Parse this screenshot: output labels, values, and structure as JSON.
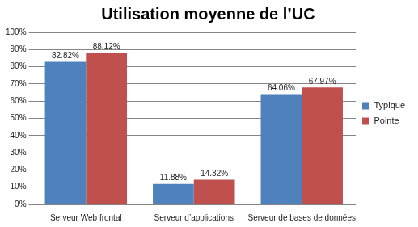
{
  "chart_data": {
    "type": "bar",
    "title": "Utilisation moyenne de l’UC",
    "categories": [
      "Serveur Web frontal",
      "Serveur d’applications",
      "Serveur de bases de données"
    ],
    "series": [
      {
        "name": "Typique",
        "color": "#4f81bd",
        "values": [
          82.82,
          11.88,
          64.06
        ],
        "value_labels": [
          "82.82%",
          "11.88%",
          "64.06%"
        ]
      },
      {
        "name": "Pointe",
        "color": "#c0504d",
        "values": [
          88.12,
          14.32,
          67.97
        ],
        "value_labels": [
          "88.12%",
          "14.32%",
          "67.97%"
        ]
      }
    ],
    "ylim": [
      0,
      100
    ],
    "yticks": [
      {
        "value": 0,
        "label": "0%"
      },
      {
        "value": 10,
        "label": "10%"
      },
      {
        "value": 20,
        "label": "20%"
      },
      {
        "value": 30,
        "label": "30%"
      },
      {
        "value": 40,
        "label": "40%"
      },
      {
        "value": 50,
        "label": "50%"
      },
      {
        "value": 60,
        "label": "60%"
      },
      {
        "value": 70,
        "label": "70%"
      },
      {
        "value": 80,
        "label": "80%"
      },
      {
        "value": 90,
        "label": "90%"
      },
      {
        "value": 100,
        "label": "100%"
      }
    ],
    "grid": true,
    "legend": "right",
    "data_labels": true
  }
}
